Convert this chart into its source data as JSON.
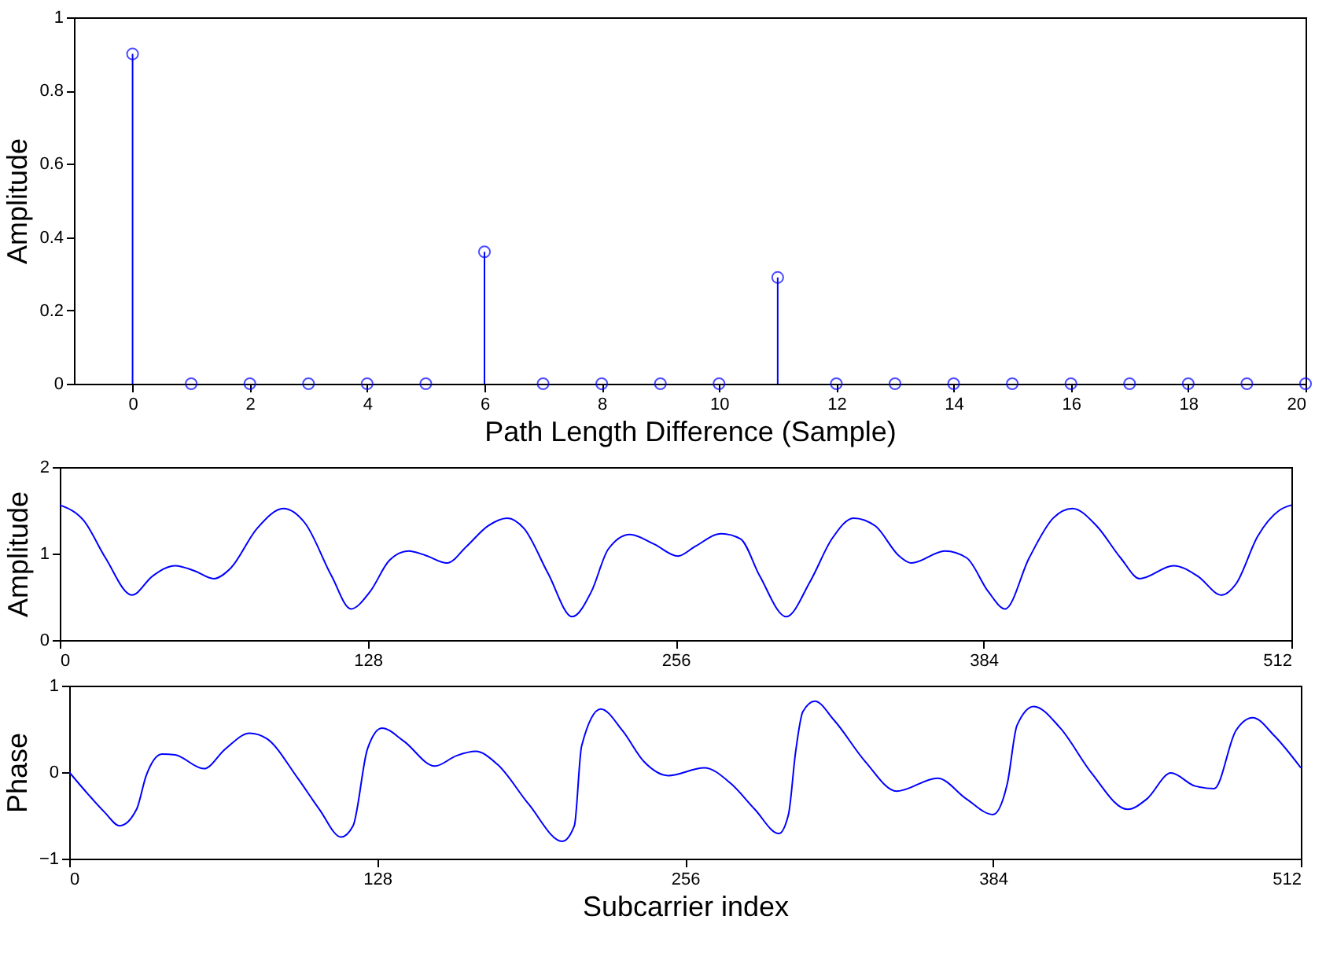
{
  "chart_data": [
    {
      "type": "lollipop",
      "xlabel": "Path Length Difference (Sample)",
      "ylabel": "Amplitude",
      "marker": "circle",
      "grid": false,
      "xlim": [
        -1,
        20
      ],
      "xticks": [
        0,
        2,
        4,
        6,
        8,
        10,
        12,
        14,
        16,
        18,
        20
      ],
      "ylim": [
        0,
        1
      ],
      "yticks": [
        0,
        0.2,
        0.4,
        0.6,
        0.8,
        1
      ],
      "x": [
        0,
        1,
        2,
        3,
        4,
        5,
        6,
        7,
        8,
        9,
        10,
        11,
        12,
        13,
        14,
        15,
        16,
        17,
        18,
        19,
        20
      ],
      "series": [
        {
          "color": "#0000ff",
          "values": [
            0.9,
            0,
            0,
            0,
            0,
            0,
            0.36,
            0,
            0,
            0,
            0,
            0.29,
            0,
            0,
            0,
            0,
            0,
            0,
            0,
            0,
            0
          ]
        }
      ]
    },
    {
      "type": "line",
      "ylabel": "Amplitude",
      "grid": false,
      "xlim": [
        0,
        512
      ],
      "xticks": [
        0,
        128,
        256,
        384,
        512
      ],
      "ylim": [
        0,
        2
      ],
      "yticks": [
        0,
        1,
        2
      ],
      "x": [
        0,
        10,
        19,
        30,
        38.6,
        48,
        56,
        64,
        71,
        82,
        93,
        102,
        113,
        121,
        129,
        137,
        145,
        152,
        161,
        169,
        178,
        186,
        193,
        203,
        213,
        221,
        228,
        237,
        247,
        257,
        264,
        275,
        283,
        291,
        302,
        312,
        321,
        330,
        339,
        349,
        354,
        368,
        377,
        386,
        393,
        403,
        413,
        421,
        431,
        441,
        449,
        463,
        473,
        483,
        489,
        498,
        507,
        512
      ],
      "series": [
        {
          "color": "#0000ff",
          "values": [
            1.56,
            1.38,
            0.95,
            0.52,
            0.74,
            0.86,
            0.8,
            0.71,
            0.83,
            1.29,
            1.52,
            1.35,
            0.74,
            0.36,
            0.56,
            0.92,
            1.03,
            0.98,
            0.89,
            1.08,
            1.32,
            1.41,
            1.29,
            0.77,
            0.27,
            0.56,
            1.05,
            1.22,
            1.11,
            0.97,
            1.08,
            1.23,
            1.17,
            0.74,
            0.27,
            0.68,
            1.17,
            1.41,
            1.32,
            0.97,
            0.89,
            1.03,
            0.95,
            0.56,
            0.36,
            0.95,
            1.41,
            1.52,
            1.32,
            0.95,
            0.71,
            0.86,
            0.74,
            0.52,
            0.65,
            1.2,
            1.5,
            1.56
          ]
        }
      ]
    },
    {
      "type": "line",
      "xlabel": "Subcarrier index",
      "ylabel": "Phase",
      "grid": false,
      "xlim": [
        0,
        512
      ],
      "xticks": [
        0,
        128,
        256,
        384,
        512
      ],
      "ylim": [
        -1,
        1
      ],
      "yticks": [
        -1,
        0,
        1
      ],
      "x": [
        0,
        8,
        14.6,
        21,
        28,
        32,
        38.6,
        44,
        56,
        65,
        75,
        82,
        95,
        104,
        113,
        118,
        124,
        130,
        139,
        152,
        161,
        169,
        178,
        191,
        205,
        210,
        213,
        221,
        230,
        239,
        249,
        264,
        275,
        285,
        295,
        299,
        302,
        305,
        310,
        318,
        331,
        344,
        361,
        373,
        384,
        390,
        394,
        401,
        412,
        425,
        440,
        448,
        458,
        468,
        476,
        485,
        492,
        501,
        512
      ],
      "series": [
        {
          "color": "#0000ff",
          "values": [
            0,
            -0.26,
            -0.46,
            -0.62,
            -0.43,
            -0.04,
            0.21,
            0.2,
            0.04,
            0.27,
            0.45,
            0.39,
            -0.07,
            -0.43,
            -0.75,
            -0.62,
            0.27,
            0.51,
            0.36,
            0.07,
            0.19,
            0.24,
            0.09,
            -0.37,
            -0.8,
            -0.62,
            0.3,
            0.73,
            0.48,
            0.12,
            -0.04,
            0.05,
            -0.13,
            -0.43,
            -0.71,
            -0.49,
            0.24,
            0.7,
            0.82,
            0.6,
            0.12,
            -0.22,
            -0.07,
            -0.31,
            -0.49,
            -0.13,
            0.54,
            0.76,
            0.51,
            -0.01,
            -0.43,
            -0.31,
            -0.01,
            -0.16,
            -0.19,
            0.48,
            0.63,
            0.42,
            0.05
          ]
        }
      ]
    }
  ]
}
